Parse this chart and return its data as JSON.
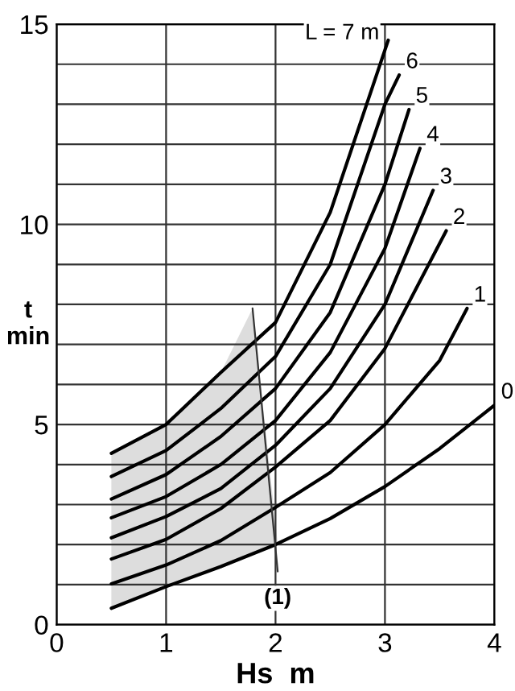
{
  "chart_data": {
    "type": "line",
    "xlabel": "Hs  m",
    "ylabel": "t\nmin",
    "xlim": [
      0,
      4
    ],
    "ylim": [
      0,
      15
    ],
    "xticks": [
      0,
      1,
      2,
      3,
      4
    ],
    "yticks": [
      0,
      {
        "value": 1,
        "label": null
      },
      {
        "value": 2,
        "label": null
      },
      {
        "value": 3,
        "label": null
      },
      {
        "value": 4,
        "label": null
      },
      5,
      {
        "value": 6,
        "label": null
      },
      {
        "value": 7,
        "label": null
      },
      {
        "value": 8,
        "label": null
      },
      {
        "value": 9,
        "label": null
      },
      10,
      {
        "value": 11,
        "label": null
      },
      {
        "value": 12,
        "label": null
      },
      {
        "value": 13,
        "label": null
      },
      {
        "value": 14,
        "label": null
      },
      15
    ],
    "grid": true,
    "legend": false,
    "series": [
      {
        "name": "L = 7 m",
        "color": "#000000",
        "x": [
          0.5,
          1,
          1.5,
          2,
          2.5,
          3.03
        ],
        "values": [
          4.28,
          5.0,
          6.3,
          7.55,
          10.3,
          14.6
        ]
      },
      {
        "name": "6",
        "color": "#000000",
        "x": [
          0.5,
          1,
          1.5,
          2,
          2.5,
          3,
          3.13
        ],
        "values": [
          3.7,
          4.35,
          5.4,
          6.7,
          9.0,
          13.0,
          13.73
        ]
      },
      {
        "name": "5",
        "color": "#000000",
        "x": [
          0.5,
          1,
          1.5,
          2,
          2.5,
          3,
          3.22
        ],
        "values": [
          3.14,
          3.75,
          4.7,
          5.9,
          7.8,
          11.0,
          12.87
        ]
      },
      {
        "name": "4",
        "color": "#000000",
        "x": [
          0.5,
          1,
          1.5,
          2,
          2.5,
          3,
          3.32
        ],
        "values": [
          2.67,
          3.2,
          4.0,
          5.1,
          6.8,
          9.4,
          11.9
        ]
      },
      {
        "name": "3",
        "color": "#000000",
        "x": [
          0.5,
          1,
          1.5,
          2,
          2.5,
          3,
          3.44
        ],
        "values": [
          2.17,
          2.7,
          3.4,
          4.48,
          5.9,
          8.0,
          10.85
        ]
      },
      {
        "name": "2",
        "color": "#000000",
        "x": [
          0.5,
          1,
          1.5,
          2,
          2.5,
          3,
          3.56
        ],
        "values": [
          1.64,
          2.13,
          2.9,
          3.94,
          5.1,
          6.9,
          9.84
        ]
      },
      {
        "name": "1",
        "color": "#000000",
        "x": [
          0.5,
          1,
          1.5,
          2,
          2.5,
          3,
          3.5,
          3.75
        ],
        "values": [
          1.02,
          1.49,
          2.1,
          2.93,
          3.8,
          5.0,
          6.6,
          7.9
        ]
      },
      {
        "name": "0",
        "color": "#000000",
        "x": [
          0.5,
          1,
          1.5,
          2,
          2.5,
          3,
          3.5,
          4
        ],
        "values": [
          0.41,
          0.95,
          1.45,
          2.0,
          2.65,
          3.45,
          4.4,
          5.48
        ]
      },
      {
        "color": "#333333",
        "x": [
          1.79,
          2.02
        ],
        "values": [
          7.9,
          1.33
        ]
      }
    ],
    "annotations": [
      {
        "text": "(1)",
        "x": 2.02,
        "y": 1.33
      }
    ]
  }
}
